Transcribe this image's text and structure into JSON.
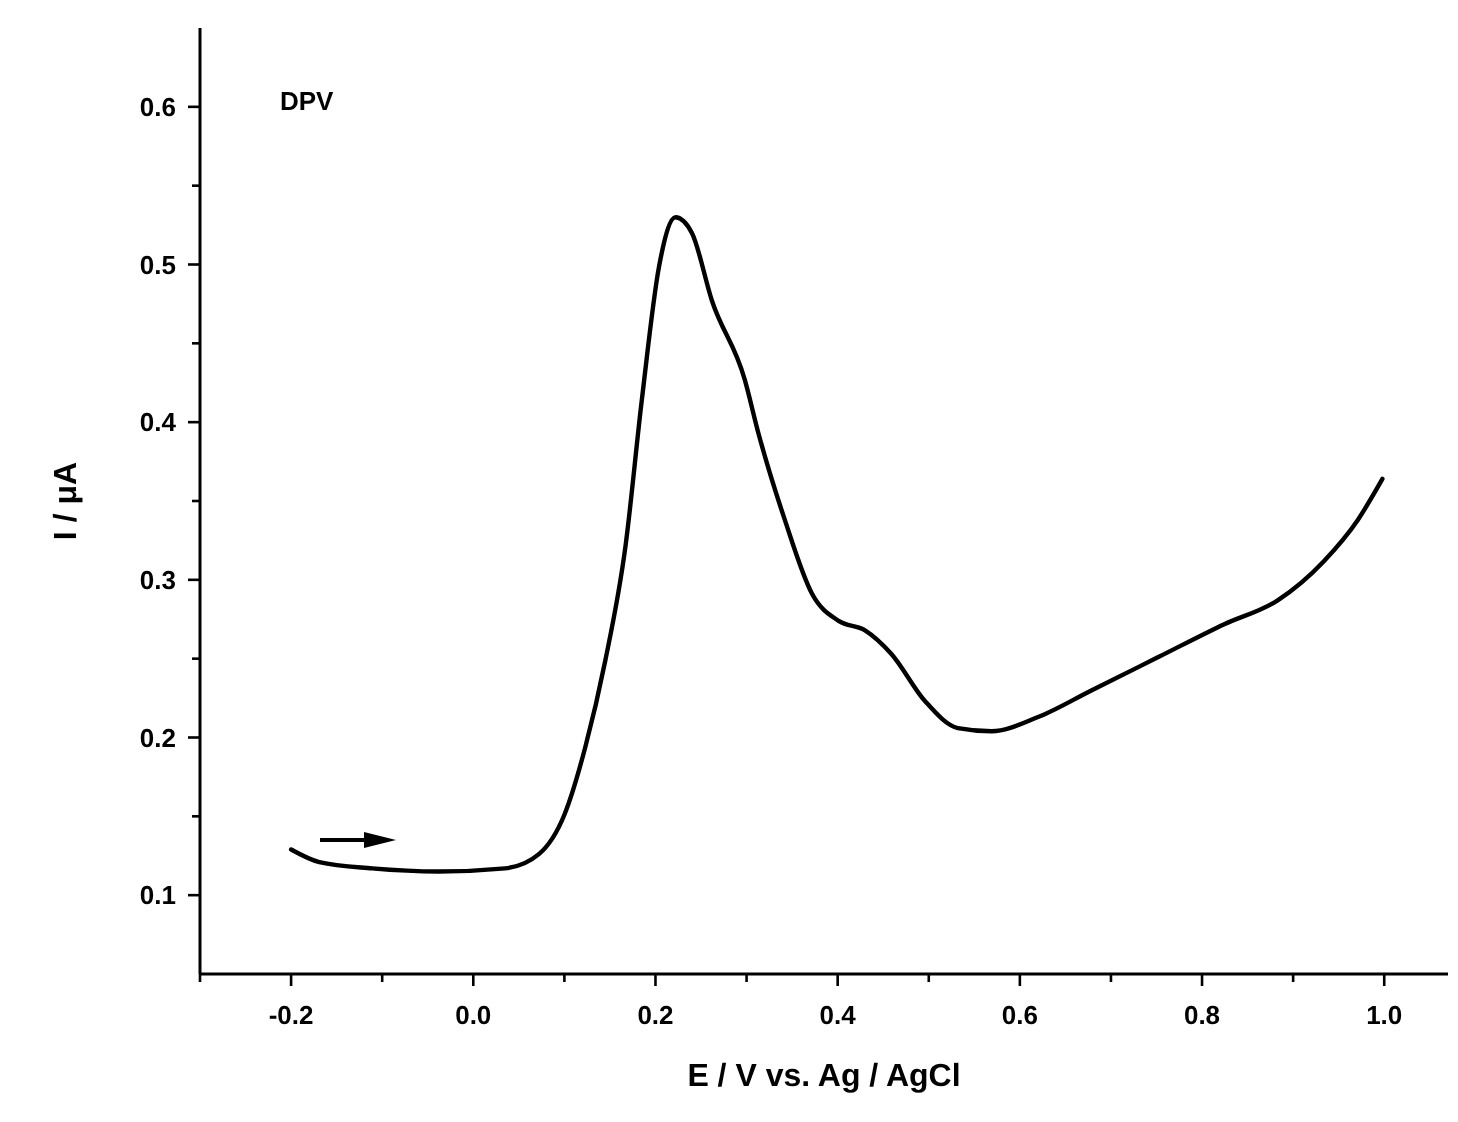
{
  "chart_data": {
    "type": "line",
    "xlabel": "E / V vs. Ag / AgCl",
    "ylabel": "I / μA",
    "annotations": [
      "DPV"
    ],
    "xlim": [
      -0.3,
      1.07
    ],
    "ylim": [
      0.05,
      0.65
    ],
    "xticks": [
      {
        "value": -0.3,
        "label": null
      },
      -0.2,
      {
        "value": -0.1,
        "label": null
      },
      {
        "value": 0,
        "label": "0.0"
      },
      {
        "value": 0.1,
        "label": null
      },
      0.2,
      {
        "value": 0.3,
        "label": null
      },
      0.4,
      {
        "value": 0.5,
        "label": null
      },
      0.6,
      {
        "value": 0.7,
        "label": null
      },
      0.8,
      {
        "value": 0.9,
        "label": null
      },
      {
        "value": 1,
        "label": "1.0"
      }
    ],
    "yticks": [
      0.1,
      {
        "value": 0.15,
        "label": null
      },
      0.2,
      {
        "value": 0.25,
        "label": null
      },
      0.3,
      {
        "value": 0.35,
        "label": null
      },
      0.4,
      {
        "value": 0.45,
        "label": null
      },
      0.5,
      {
        "value": 0.55,
        "label": null
      },
      0.6
    ],
    "grid": false,
    "marker": "none",
    "line_style": "solid",
    "series": [
      {
        "color": "#000000",
        "x": [
          -0.2,
          -0.169,
          -0.111,
          -0.038,
          0.035,
          0.072,
          0.1,
          0.123,
          0.145,
          0.167,
          0.185,
          0.204,
          0.222,
          0.24,
          0.262,
          0.298,
          0.313,
          0.342,
          0.372,
          0.401,
          0.43,
          0.459,
          0.496,
          0.532,
          0.569,
          0.62,
          0.679,
          0.752,
          0.825,
          0.883,
          0.934,
          0.971,
          0.998
        ],
        "values": [
          0.129,
          0.121,
          0.117,
          0.115,
          0.117,
          0.126,
          0.151,
          0.194,
          0.249,
          0.321,
          0.414,
          0.499,
          0.53,
          0.52,
          0.477,
          0.427,
          0.393,
          0.338,
          0.291,
          0.274,
          0.268,
          0.253,
          0.223,
          0.206,
          0.204,
          0.213,
          0.23,
          0.251,
          0.272,
          0.287,
          0.312,
          0.338,
          0.364
        ]
      }
    ]
  }
}
